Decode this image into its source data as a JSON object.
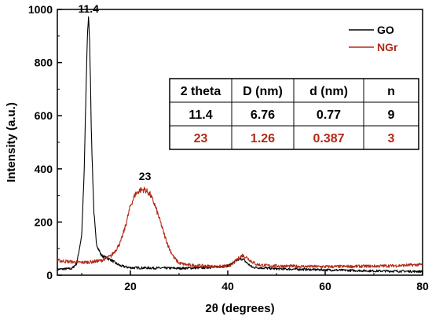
{
  "chart_data": {
    "type": "line",
    "title": "",
    "xlabel": "2θ (degrees)",
    "ylabel": "Intensity (a.u.)",
    "xlim": [
      5,
      80
    ],
    "ylim": [
      0,
      1000
    ],
    "x_ticks": [
      20,
      40,
      60,
      80
    ],
    "x_tick_labels": [
      "20",
      "40",
      "60",
      "80"
    ],
    "y_ticks": [
      0,
      200,
      400,
      600,
      800,
      1000
    ],
    "y_tick_labels": [
      "0",
      "200",
      "400",
      "600",
      "800",
      "1000"
    ],
    "grid": false,
    "legend_position": "top-right",
    "series": [
      {
        "name": "GO",
        "color": "#000000",
        "x": [
          5,
          8,
          9,
          10,
          10.5,
          11,
          11.2,
          11.4,
          11.6,
          11.8,
          12,
          12.5,
          13,
          14,
          15,
          16,
          17,
          18,
          20,
          25,
          30,
          35,
          40,
          41,
          42,
          43,
          44,
          45,
          50,
          60,
          70,
          80
        ],
        "y": [
          22,
          25,
          45,
          150,
          380,
          780,
          920,
          965,
          900,
          740,
          520,
          240,
          120,
          75,
          65,
          58,
          45,
          35,
          28,
          27,
          26,
          28,
          35,
          45,
          58,
          62,
          45,
          30,
          24,
          20,
          16,
          14
        ]
      },
      {
        "name": "NGr",
        "color": "#b22a18",
        "x": [
          5,
          8,
          10,
          12,
          14,
          16,
          17,
          18,
          19,
          20,
          21,
          22,
          23,
          24,
          25,
          26,
          27,
          28,
          29,
          30,
          32,
          35,
          38,
          40,
          41,
          42,
          43,
          44,
          45,
          46,
          48,
          50,
          55,
          60,
          65,
          70,
          75,
          80
        ],
        "y": [
          55,
          50,
          48,
          50,
          55,
          72,
          95,
          125,
          185,
          260,
          305,
          320,
          322,
          305,
          265,
          210,
          150,
          100,
          65,
          45,
          38,
          35,
          32,
          35,
          42,
          60,
          75,
          65,
          50,
          40,
          36,
          35,
          33,
          32,
          33,
          34,
          36,
          40
        ]
      }
    ],
    "annotations": [
      {
        "text": "11.4",
        "x": 11.4,
        "y": 965,
        "color": "#000000"
      },
      {
        "text": "23",
        "x": 23,
        "y": 322,
        "color": "#b22a18"
      }
    ],
    "table": {
      "headers": [
        "2 theta",
        "D (nm)",
        "d (nm)",
        "n"
      ],
      "rows": [
        {
          "values": [
            "11.4",
            "6.76",
            "0.77",
            "9"
          ],
          "color": "#000000"
        },
        {
          "values": [
            "23",
            "1.26",
            "0.387",
            "3"
          ],
          "color": "#b22a18"
        }
      ]
    }
  }
}
